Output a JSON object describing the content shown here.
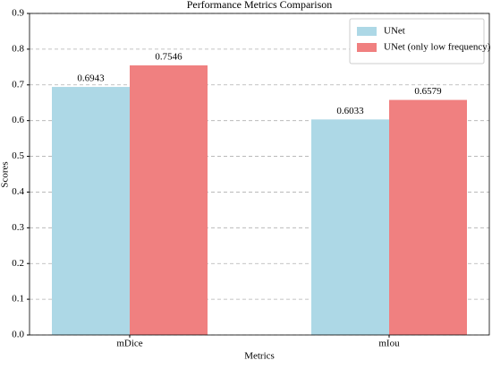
{
  "chart_data": {
    "type": "bar",
    "title": "Performance Metrics Comparison",
    "x_label": "Metrics",
    "y_label": "Scores",
    "categories": [
      "mDice",
      "mIou"
    ],
    "series": [
      {
        "name": "UNet",
        "color": "#add8e6",
        "values": [
          0.6943,
          0.6033
        ]
      },
      {
        "name": "UNet (only low frequency)",
        "color": "#f08080",
        "values": [
          0.7546,
          0.6579
        ]
      }
    ],
    "ylim": [
      0,
      0.9
    ],
    "yticks": [
      {
        "value": 0,
        "label": "0.0"
      },
      0.1,
      0.2,
      0.3,
      0.4,
      0.5,
      0.6,
      0.7,
      0.8,
      0.9
    ],
    "grid": true,
    "legend": "upper-right"
  }
}
